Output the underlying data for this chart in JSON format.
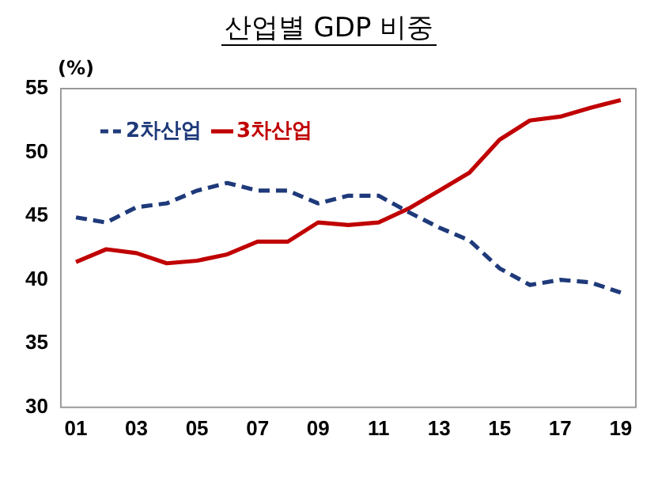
{
  "chart_data": {
    "type": "line",
    "title": "산업별 GDP 비중",
    "ylabel": "(%)",
    "categories": [
      "01",
      null,
      "03",
      null,
      "05",
      null,
      "07",
      null,
      "09",
      null,
      "11",
      null,
      "13",
      null,
      "15",
      null,
      "17",
      null,
      "19"
    ],
    "series": [
      {
        "name": "2차산업",
        "color": "#1f3a7a",
        "line_style": "dashed",
        "values": [
          44.9,
          44.5,
          45.7,
          46.0,
          47.0,
          47.6,
          47.0,
          47.0,
          46.0,
          46.6,
          46.6,
          45.3,
          44.1,
          43.1,
          40.9,
          39.6,
          40.0,
          39.8,
          39.0
        ]
      },
      {
        "name": "3차산업",
        "color": "#c00000",
        "line_style": "solid",
        "values": [
          41.4,
          42.4,
          42.1,
          41.3,
          41.5,
          42.0,
          43.0,
          43.0,
          44.5,
          44.3,
          44.5,
          45.6,
          47.0,
          48.4,
          51.0,
          52.5,
          52.8,
          53.5,
          54.1
        ]
      }
    ],
    "ylim": [
      30,
      55
    ],
    "yticks": [
      30,
      35,
      40,
      45,
      50,
      55
    ],
    "grid": false,
    "legend": "top left",
    "marker": "none"
  }
}
